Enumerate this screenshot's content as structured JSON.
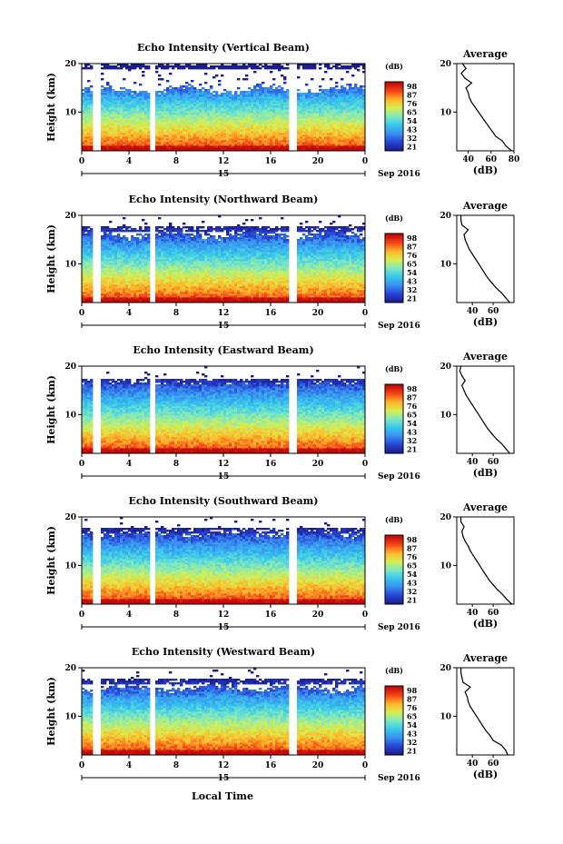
{
  "figure": {
    "xlabel": "Local Time",
    "date_label": "Sep 2016",
    "day_label": "15",
    "unit_label": "(dB)",
    "ylabel": "Height (km)",
    "avg_title": "Average",
    "avg_xlabel": "(dB)",
    "colorbar_ticks": [
      "21",
      "32",
      "43",
      "54",
      "65",
      "76",
      "87",
      "98"
    ]
  },
  "colors": {
    "colormap": [
      "#1c1c8c",
      "#2845d8",
      "#3a90f0",
      "#38c8ec",
      "#7ee8c0",
      "#d6ee50",
      "#ffb62a",
      "#f44818",
      "#c20a0a"
    ]
  },
  "chart_data": [
    {
      "type": "heatmap",
      "title": "Echo Intensity (Vertical Beam)",
      "xlabel": "Local Time",
      "ylabel": "Height (km)",
      "x_ticks": [
        "0",
        "4",
        "8",
        "12",
        "16",
        "20",
        "0"
      ],
      "xlim": [
        0,
        24
      ],
      "y_ticks": [
        "20",
        "10"
      ],
      "ylim": [
        2,
        20
      ],
      "color_range": [
        21,
        98
      ],
      "gaps_hours": [
        [
          1.0,
          1.6
        ],
        [
          5.8,
          6.3
        ],
        [
          17.6,
          18.2
        ]
      ],
      "average_profile": {
        "title": "Average",
        "xlabel": "(dB)",
        "x_ticks": [
          "40",
          "60",
          "80"
        ],
        "xlim": [
          30,
          80
        ],
        "height_km": [
          2,
          3,
          4,
          5,
          6,
          7,
          8,
          9,
          10,
          11,
          12,
          13,
          14,
          15,
          16,
          17,
          18,
          19,
          20
        ],
        "values_db": [
          78,
          73,
          70,
          64,
          61,
          58,
          55,
          52,
          49,
          46,
          43,
          41,
          40,
          38,
          43,
          37,
          34,
          38,
          35
        ]
      }
    },
    {
      "type": "heatmap",
      "title": "Echo Intensity (Northward Beam)",
      "xlabel": "Local Time",
      "ylabel": "Height (km)",
      "x_ticks": [
        "0",
        "4",
        "8",
        "12",
        "16",
        "20",
        "0"
      ],
      "xlim": [
        0,
        24
      ],
      "y_ticks": [
        "20",
        "10"
      ],
      "ylim": [
        2,
        20
      ],
      "color_range": [
        21,
        98
      ],
      "gaps_hours": [
        [
          1.0,
          1.6
        ],
        [
          5.8,
          6.3
        ],
        [
          17.6,
          18.2
        ]
      ],
      "average_profile": {
        "title": "Average",
        "xlabel": "(dB)",
        "x_ticks": [
          "40",
          "60"
        ],
        "xlim": [
          25,
          80
        ],
        "height_km": [
          2,
          3,
          4,
          5,
          6,
          7,
          8,
          9,
          10,
          11,
          12,
          13,
          14,
          15,
          16,
          17,
          18,
          19,
          20
        ],
        "values_db": [
          76,
          72,
          68,
          63,
          59,
          55,
          52,
          49,
          46,
          43,
          40,
          37,
          35,
          33,
          32,
          36,
          30,
          29,
          29
        ]
      }
    },
    {
      "type": "heatmap",
      "title": "Echo Intensity (Eastward Beam)",
      "xlabel": "Local Time",
      "ylabel": "Height (km)",
      "x_ticks": [
        "0",
        "4",
        "8",
        "12",
        "16",
        "20",
        "0"
      ],
      "xlim": [
        0,
        24
      ],
      "y_ticks": [
        "20",
        "10"
      ],
      "ylim": [
        2,
        20
      ],
      "color_range": [
        21,
        98
      ],
      "gaps_hours": [
        [
          1.0,
          1.6
        ],
        [
          5.8,
          6.3
        ],
        [
          17.6,
          18.2
        ]
      ],
      "average_profile": {
        "title": "Average",
        "xlabel": "(dB)",
        "x_ticks": [
          "40",
          "60"
        ],
        "xlim": [
          25,
          80
        ],
        "height_km": [
          2,
          3,
          4,
          5,
          6,
          7,
          8,
          9,
          10,
          11,
          12,
          13,
          14,
          15,
          16,
          17,
          18,
          19,
          20
        ],
        "values_db": [
          76,
          72,
          68,
          63,
          59,
          55,
          52,
          49,
          46,
          43,
          40,
          37,
          34,
          32,
          30,
          33,
          30,
          28,
          29
        ]
      }
    },
    {
      "type": "heatmap",
      "title": "Echo Intensity (Southward Beam)",
      "xlabel": "Local Time",
      "ylabel": "Height (km)",
      "x_ticks": [
        "0",
        "4",
        "8",
        "12",
        "16",
        "20",
        "0"
      ],
      "xlim": [
        0,
        24
      ],
      "y_ticks": [
        "20",
        "10"
      ],
      "ylim": [
        2,
        20
      ],
      "color_range": [
        21,
        98
      ],
      "gaps_hours": [
        [
          1.0,
          1.6
        ],
        [
          5.8,
          6.3
        ],
        [
          17.6,
          18.2
        ]
      ],
      "average_profile": {
        "title": "Average",
        "xlabel": "(dB)",
        "x_ticks": [
          "40",
          "60"
        ],
        "xlim": [
          25,
          80
        ],
        "height_km": [
          2,
          3,
          4,
          5,
          6,
          7,
          8,
          9,
          10,
          11,
          12,
          13,
          14,
          15,
          16,
          17,
          18,
          19,
          20
        ],
        "values_db": [
          78,
          73,
          69,
          64,
          60,
          56,
          53,
          50,
          47,
          44,
          41,
          38,
          36,
          33,
          31,
          30,
          32,
          29,
          29
        ]
      }
    },
    {
      "type": "heatmap",
      "title": "Echo Intensity (Westward Beam)",
      "xlabel": "Local Time",
      "ylabel": "Height (km)",
      "x_ticks": [
        "0",
        "4",
        "8",
        "12",
        "16",
        "20",
        "0"
      ],
      "xlim": [
        0,
        24
      ],
      "y_ticks": [
        "20",
        "10"
      ],
      "ylim": [
        2,
        20
      ],
      "color_range": [
        21,
        98
      ],
      "gaps_hours": [
        [
          1.0,
          1.6
        ],
        [
          5.8,
          6.3
        ],
        [
          17.6,
          18.2
        ]
      ],
      "average_profile": {
        "title": "Average",
        "xlabel": "(dB)",
        "x_ticks": [
          "40",
          "60"
        ],
        "xlim": [
          25,
          80
        ],
        "height_km": [
          2,
          3,
          4,
          5,
          6,
          7,
          8,
          9,
          10,
          11,
          12,
          13,
          14,
          15,
          16,
          17,
          18,
          19,
          20
        ],
        "values_db": [
          74,
          72,
          68,
          60,
          57,
          53,
          50,
          47,
          44,
          41,
          38,
          36,
          35,
          33,
          38,
          31,
          30,
          29,
          29
        ]
      }
    }
  ]
}
